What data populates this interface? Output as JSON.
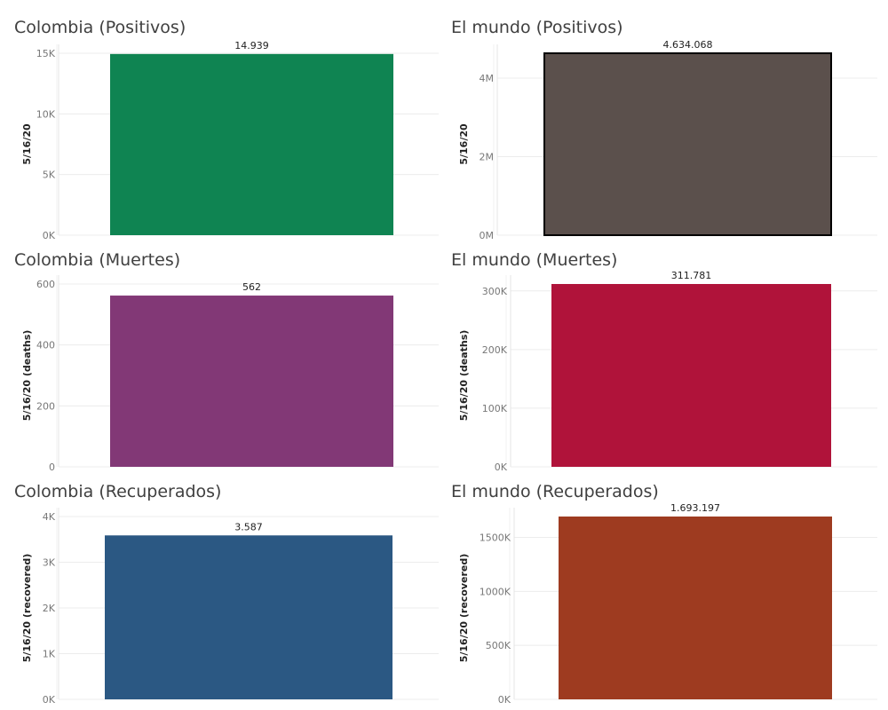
{
  "chart_data": [
    {
      "type": "bar",
      "title": "Colombia (Positivos)",
      "ylabel": "5/16/20",
      "values": [
        14939
      ],
      "data_label": "14.939",
      "color": "#0f8452",
      "ylim": [
        0,
        15000
      ],
      "ticks": [
        0,
        5000,
        10000,
        15000
      ],
      "tick_labels": [
        "0K",
        "5K",
        "10K",
        "15K"
      ],
      "outlined": false
    },
    {
      "type": "bar",
      "title": "El mundo (Positivos)",
      "ylabel": "5/16/20",
      "values": [
        4634068
      ],
      "data_label": "4.634.068",
      "color": "#5b504c",
      "ylim": [
        0,
        4634068
      ],
      "ticks": [
        0,
        2000000,
        4000000
      ],
      "tick_labels": [
        "0M",
        "2M",
        "4M"
      ],
      "outlined": true
    },
    {
      "type": "bar",
      "title": "Colombia (Muertes)",
      "ylabel": "5/16/20 (deaths)",
      "values": [
        562
      ],
      "data_label": "562",
      "color": "#823876",
      "ylim": [
        0,
        600
      ],
      "ticks": [
        0,
        200,
        400,
        600
      ],
      "tick_labels": [
        "0",
        "200",
        "400",
        "600"
      ],
      "outlined": false
    },
    {
      "type": "bar",
      "title": "El mundo (Muertes)",
      "ylabel": "5/16/20 (deaths)",
      "values": [
        311781
      ],
      "data_label": "311.781",
      "color": "#b0133a",
      "ylim": [
        0,
        311781
      ],
      "ticks": [
        0,
        100000,
        200000,
        300000
      ],
      "tick_labels": [
        "0K",
        "100K",
        "200K",
        "300K"
      ],
      "outlined": false
    },
    {
      "type": "bar",
      "title": "Colombia (Recuperados)",
      "ylabel": "5/16/20 (recovered)",
      "values": [
        3587
      ],
      "data_label": "3.587",
      "color": "#2b5883",
      "ylim": [
        0,
        4000
      ],
      "ticks": [
        0,
        1000,
        2000,
        3000,
        4000
      ],
      "tick_labels": [
        "0K",
        "1K",
        "2K",
        "3K",
        "4K"
      ],
      "outlined": false
    },
    {
      "type": "bar",
      "title": "El mundo (Recuperados)",
      "ylabel": "5/16/20 (recovered)",
      "values": [
        1693197
      ],
      "data_label": "1.693.197",
      "color": "#9e3b20",
      "ylim": [
        0,
        1693197
      ],
      "ticks": [
        0,
        500000,
        1000000,
        1500000
      ],
      "tick_labels": [
        "0K",
        "500K",
        "1000K",
        "1500K"
      ],
      "outlined": false
    }
  ]
}
